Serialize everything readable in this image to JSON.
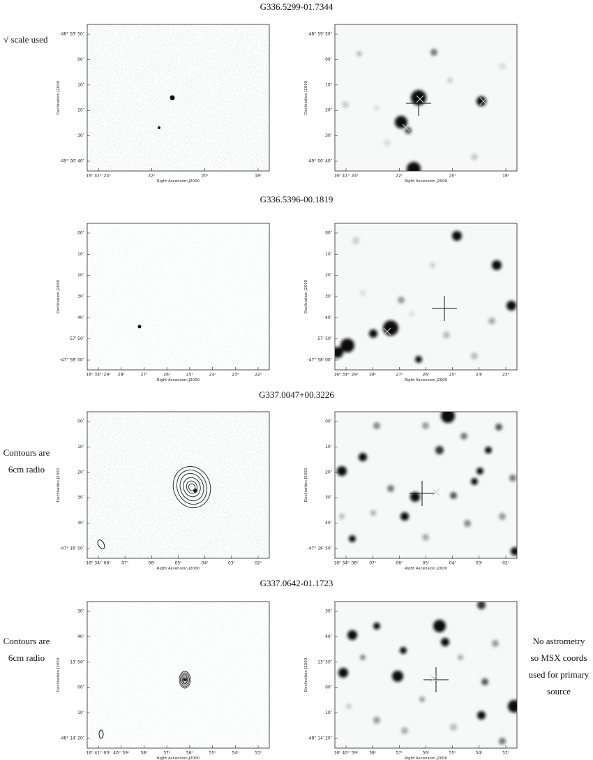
{
  "rows": [
    {
      "title": "G336.5299-01.7344",
      "panels": [
        {
          "ylabel": "Declination J2000",
          "xlabel": "Right Ascension J2000",
          "yticks": [
            "-48° 59′ 50″",
            "00″",
            "10″",
            "20″",
            "30″",
            "-49° 00′ 40″"
          ],
          "xticks": [
            "16ʰ 41ᵐ 24ˢ",
            "22ˢ",
            "20ˢ",
            "18ˢ"
          ]
        },
        {
          "ylabel": "Declination J2000",
          "xlabel": "Right Ascension J2000",
          "yticks": [
            "-48° 59′ 50″",
            "00″",
            "10″",
            "20″",
            "30″",
            "-49° 00′ 40″"
          ],
          "xticks": [
            "16ʰ 41ᵐ 24ˢ",
            "22ˢ",
            "20ˢ",
            "18ˢ"
          ]
        }
      ]
    },
    {
      "title": "G336.5396-00.1819",
      "panels": [
        {
          "ylabel": "Declination J2000",
          "xlabel": "Right Ascension J2000",
          "yticks": [
            "00″",
            "10″",
            "20″",
            "30″",
            "40″",
            "57′ 50″",
            "-47° 58′ 00″"
          ],
          "xticks": [
            "16ʰ 34ᵐ 29ˢ",
            "28ˢ",
            "27ˢ",
            "26ˢ",
            "25ˢ",
            "24ˢ",
            "23ˢ",
            "22ˢ"
          ]
        },
        {
          "ylabel": "Declination J2000",
          "xlabel": "Right Ascension J2000",
          "yticks": [
            "00″",
            "10″",
            "20″",
            "30″",
            "40″",
            "57′ 50″",
            "-47° 58′ 00″"
          ],
          "xticks": [
            "16ʰ 34ᵐ 29ˢ",
            "28ˢ",
            "27ˢ",
            "26ˢ",
            "25ˢ",
            "24ˢ",
            "23ˢ"
          ]
        }
      ]
    },
    {
      "title": "G337.0047+00.3226",
      "panels": [
        {
          "ylabel": "Declination J2000",
          "xlabel": "Right Ascension J2000",
          "yticks": [
            "00″",
            "10″",
            "20″",
            "30″",
            "40″",
            "-47° 16′ 50″"
          ],
          "xticks": [
            "16ʰ 34ᵐ 08ˢ",
            "07ˢ",
            "06ˢ",
            "05ˢ",
            "04ˢ",
            "03ˢ",
            "02ˢ"
          ]
        },
        {
          "ylabel": "Declination J2000",
          "xlabel": "Right Ascension J2000",
          "yticks": [
            "00″",
            "10″",
            "20″",
            "30″",
            "40″",
            "-47° 16′ 50″"
          ],
          "xticks": [
            "16ʰ 34ᵐ 08ˢ",
            "07ˢ",
            "06ˢ",
            "05ˢ",
            "04ˢ",
            "03ˢ",
            "02ˢ"
          ]
        }
      ]
    },
    {
      "title": "G337.0642-01.1723",
      "panels": [
        {
          "ylabel": "Declination J2000",
          "xlabel": "Right Ascension J2000",
          "yticks": [
            "30″",
            "40″",
            "13′ 50″",
            "00″",
            "10″",
            "-48° 14′ 20″"
          ],
          "xticks": [
            "16ʰ 41ᵐ 00ˢ",
            "40ᵐ 59ˢ",
            "58ˢ",
            "57ˢ",
            "56ˢ",
            "55ˢ",
            "54ˢ",
            "53ˢ"
          ]
        },
        {
          "ylabel": "Declination J2000",
          "xlabel": "Right Ascension J2000",
          "yticks": [
            "30″",
            "40″",
            "13′ 50″",
            "00″",
            "10″",
            "-48° 14′ 20″"
          ],
          "xticks": [
            "16ʰ 40ᵐ 59ˢ",
            "58ˢ",
            "57ˢ",
            "56ˢ",
            "55ˢ",
            "54ˢ",
            "53ˢ"
          ]
        }
      ]
    }
  ],
  "notes": {
    "sqrt_scale": "√ scale used",
    "contours_row3": [
      "Contours are",
      "6cm radio"
    ],
    "contours_row4": [
      "Contours are",
      "6cm radio"
    ],
    "astrometry": [
      "No astrometry",
      "so MSX coords",
      "used for primary",
      "source"
    ]
  }
}
